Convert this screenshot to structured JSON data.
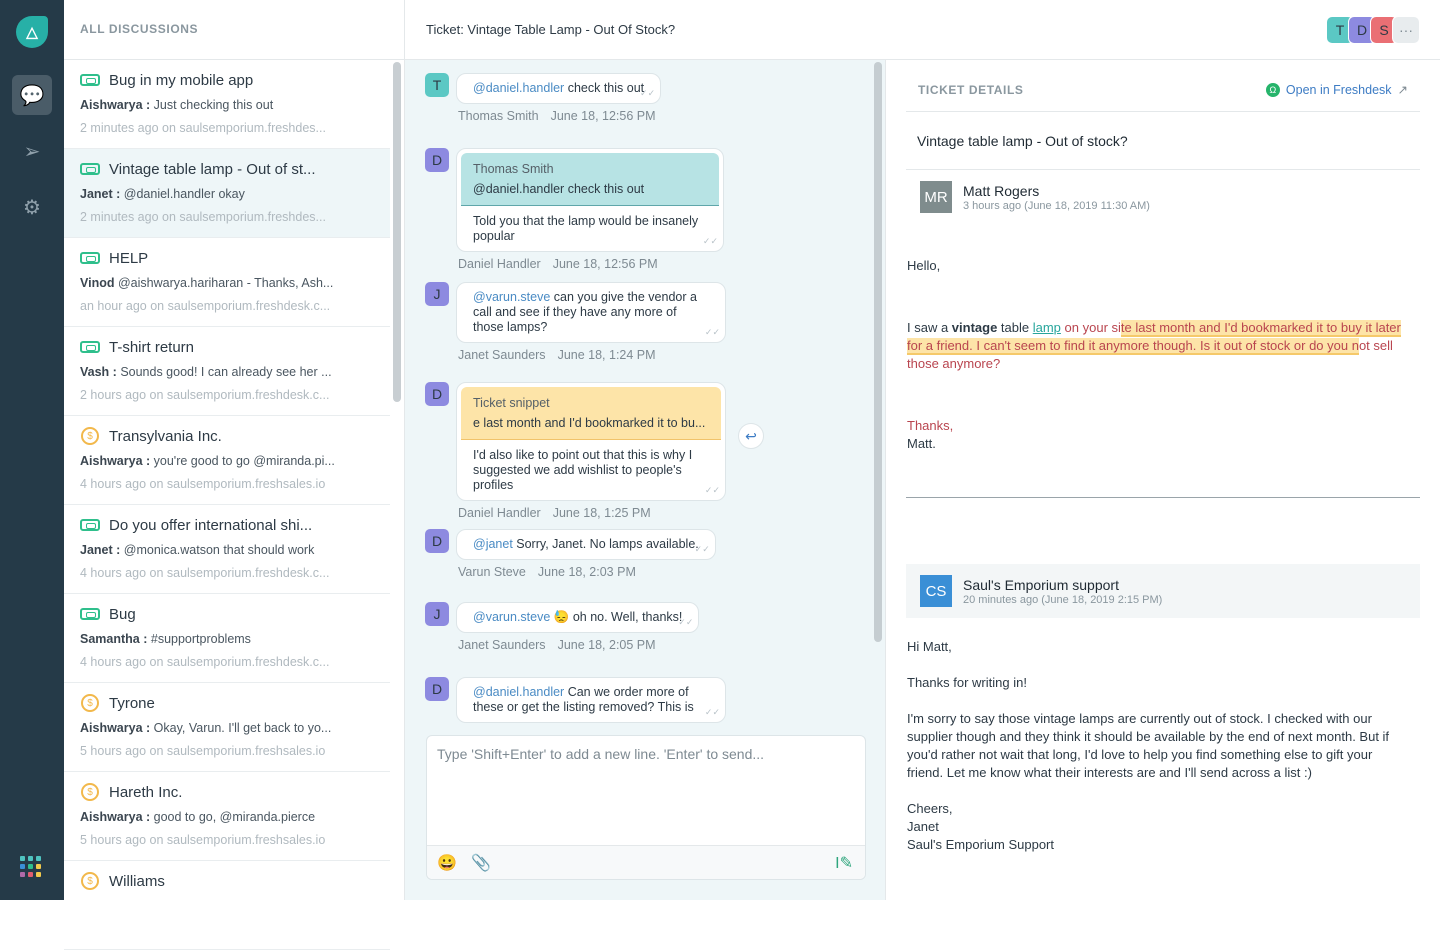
{
  "rail": {
    "icons": [
      "app-logo-icon",
      "discussions-icon",
      "send-icon",
      "settings-icon",
      "apps-grid-icon"
    ]
  },
  "list": {
    "header": "ALL DISCUSSIONS",
    "items": [
      {
        "type": "ticket",
        "title": "Bug in my mobile app",
        "author": "Aishwarya :",
        "preview": "Just checking this out",
        "meta": "2 minutes ago on saulsemporium.freshdes..."
      },
      {
        "type": "ticket",
        "title": "Vintage table lamp - Out of st...",
        "author": "Janet :",
        "preview": "@daniel.handler okay",
        "meta": "2 minutes ago on saulsemporium.freshdes...",
        "selected": true
      },
      {
        "type": "ticket",
        "title": "HELP",
        "author": "Vinod",
        "preview": "@aishwarya.hariharan - Thanks, Ash...",
        "meta": "an hour ago on saulsemporium.freshdesk.c..."
      },
      {
        "type": "ticket",
        "title": "T-shirt return",
        "author": "Vash :",
        "preview": "Sounds good! I can already see her ...",
        "meta": "2 hours ago on saulsemporium.freshdesk.c..."
      },
      {
        "type": "deal",
        "title": "Transylvania Inc.",
        "author": "Aishwarya :",
        "preview": "you're good to go @miranda.pi...",
        "meta": "4 hours ago on saulsemporium.freshsales.io"
      },
      {
        "type": "ticket",
        "title": "Do you offer international shi...",
        "author": "Janet :",
        "preview": "@monica.watson that should work",
        "meta": "4 hours ago on saulsemporium.freshdesk.c..."
      },
      {
        "type": "ticket",
        "title": "Bug",
        "author": "Samantha :",
        "preview": "#supportproblems",
        "meta": "4 hours ago on saulsemporium.freshdesk.c..."
      },
      {
        "type": "deal",
        "title": "Tyrone",
        "author": "Aishwarya :",
        "preview": "Okay, Varun. I'll get back to yo...",
        "meta": "5 hours ago on saulsemporium.freshsales.io"
      },
      {
        "type": "deal",
        "title": "Hareth Inc.",
        "author": "Aishwarya :",
        "preview": "good to go, @miranda.pierce",
        "meta": "5 hours ago on saulsemporium.freshsales.io"
      },
      {
        "type": "deal",
        "title": "Williams",
        "author": "",
        "preview": "",
        "meta": ""
      }
    ]
  },
  "header": {
    "title": "Ticket: Vintage Table Lamp - Out Of Stock?",
    "participants": [
      {
        "initial": "T",
        "color": "#5bc8c4"
      },
      {
        "initial": "D",
        "color": "#8d8ae0"
      },
      {
        "initial": "S",
        "color": "#ea6f74"
      }
    ],
    "more": "···"
  },
  "chat": {
    "messages": [
      {
        "avatar": "T",
        "color": "#5bc8c4",
        "mention": "@daniel.handler",
        "text": " check this out",
        "author": "Thomas Smith",
        "time": "June 18, 12:56 PM"
      },
      {
        "avatar": "D",
        "color": "#8d8ae0",
        "quote": {
          "kind": "teal",
          "name": "Thomas Smith",
          "text": "@daniel.handler check this out"
        },
        "mention": "",
        "text": "Told you that the lamp would be insanely popular",
        "author": "Daniel Handler",
        "time": "June 18, 12:56 PM"
      },
      {
        "avatar": "J",
        "color": "#8d8ae0",
        "mention": "@varun.steve",
        "text": " can you give the vendor a call and see if they have any more of those lamps?",
        "author": "Janet Saunders",
        "time": "June 18, 1:24 PM"
      },
      {
        "avatar": "D",
        "color": "#8d8ae0",
        "quote": {
          "kind": "yel",
          "name": "Ticket snippet",
          "text": "e last month and I'd bookmarked it to bu..."
        },
        "mention": "",
        "text": "I'd also like to point out that this is why I suggested we add wishlist to people's profiles",
        "author": "Daniel Handler",
        "time": "June 18, 1:25 PM"
      },
      {
        "avatar": "D",
        "color": "#8d8ae0",
        "mention": "@janet",
        "text": " Sorry, Janet. No lamps available.",
        "author": "Varun Steve",
        "time": "June 18, 2:03 PM"
      },
      {
        "avatar": "J",
        "color": "#8d8ae0",
        "mention": "@varun.steve",
        "text": " 😓  oh no. Well, thanks!",
        "author": "Janet Saunders",
        "time": "June 18, 2:05 PM"
      },
      {
        "avatar": "D",
        "color": "#8d8ae0",
        "mention": "@daniel.handler",
        "text": " Can we order more of these or get the listing removed? This is",
        "author": "",
        "time": ""
      }
    ],
    "composer_placeholder": "Type 'Shift+Enter' to add a new line. 'Enter' to send..."
  },
  "details": {
    "heading": "TICKET DETAILS",
    "open_link": "Open in Freshdesk",
    "subject": "Vintage table lamp - Out of stock?",
    "first": {
      "initials": "MR",
      "color": "#7f8c8d",
      "name": "Matt Rogers",
      "date": "3 hours ago (June 18, 2019 11:30 AM)",
      "greeting": "Hello,",
      "b1": "I saw a ",
      "b2": "vintage",
      "b3": " table ",
      "b4": "lamp",
      "b5": " on your si",
      "b6": "te last month and I'd bookmarked it to buy it later for a friend. I can't seem to find it anymore though. Is it out of stock or do you n",
      "b7": "ot sell those anymore?",
      "sign1": "Thanks,",
      "sign2": "Matt."
    },
    "second": {
      "initials": "CS",
      "color": "#3a8fd6",
      "name": "Saul's Emporium support",
      "date": "20 minutes ago (June 18, 2019 2:15 PM)",
      "p1": "Hi Matt,",
      "p2": "Thanks for writing in!",
      "p3": "I'm sorry to say those vintage lamps are currently out of stock. I checked with our supplier though and they think it should be available by the end of next month. But if you'd rather not wait that long, I'd love to help you find something else to gift your friend. Let me know what their interests are and I'll send across a list :)",
      "s1": "Cheers,",
      "s2": "Janet",
      "s3": "Saul's Emporium Support"
    }
  }
}
